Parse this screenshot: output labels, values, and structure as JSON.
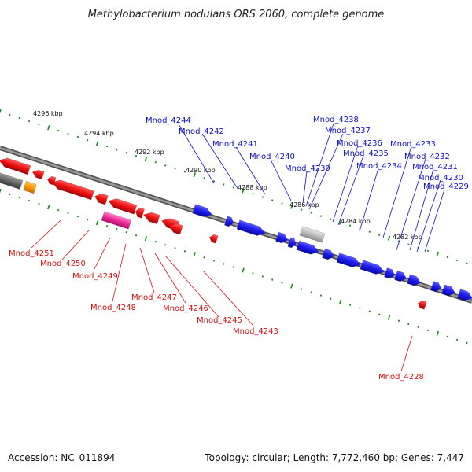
{
  "title": "Methylobacterium nodulans ORS 2060, complete genome",
  "footer": {
    "accession": "Accession: NC_011894",
    "summary": "Topology: circular; Length: 7,772,460 bp; Genes: 7,447"
  },
  "colors": {
    "forward_gene": "#1a1aee",
    "reverse_gene": "#ee1010",
    "reverse_pink": "#ee2a9a",
    "other_gray": "#bdbdbd",
    "other_orange": "#ff9900",
    "backbone": "#7a7a7a",
    "tick": "#1a8a1a",
    "label_blue": "#1010c8",
    "label_red": "#d01010"
  },
  "scale_labels": [
    "4296 kbp",
    "4294 kbp",
    "4292 kbp",
    "4290 kbp",
    "4288 kbp",
    "4286 kbp",
    "4284 kbp",
    "4282 kbp"
  ],
  "forward_labels": [
    "Mnod_4244",
    "Mnod_4242",
    "Mnod_4241",
    "Mnod_4240",
    "Mnod_4239",
    "Mnod_4238",
    "Mnod_4237",
    "Mnod_4236",
    "Mnod_4235",
    "Mnod_4234",
    "Mnod_4233",
    "Mnod_4232",
    "Mnod_4231",
    "Mnod_4230",
    "Mnod_4229"
  ],
  "reverse_labels": [
    "Mnod_4251",
    "Mnod_4250",
    "Mnod_4249",
    "Mnod_4248",
    "Mnod_4247",
    "Mnod_4246",
    "Mnod_4245",
    "Mnod_4243",
    "Mnod_4228"
  ]
}
